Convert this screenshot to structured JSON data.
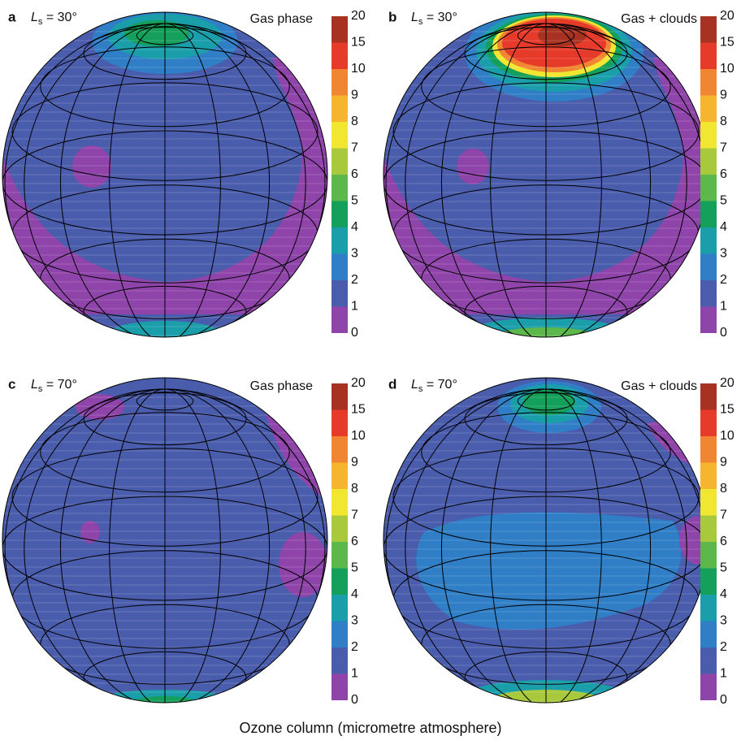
{
  "panels": [
    {
      "letter": "a",
      "ls_symbol": "L",
      "ls_subscript": "s",
      "ls_text": " = 30°",
      "phase": "Gas phase"
    },
    {
      "letter": "b",
      "ls_symbol": "L",
      "ls_subscript": "s",
      "ls_text": " = 30°",
      "phase": "Gas + clouds"
    },
    {
      "letter": "c",
      "ls_symbol": "L",
      "ls_subscript": "s",
      "ls_text": " = 70°",
      "phase": "Gas phase"
    },
    {
      "letter": "d",
      "ls_symbol": "L",
      "ls_subscript": "s",
      "ls_text": " = 70°",
      "phase": "Gas + clouds"
    }
  ],
  "colorbar": {
    "ticks": [
      0,
      1,
      2,
      3,
      4,
      5,
      6,
      7,
      8,
      9,
      10,
      15,
      20
    ],
    "colors": [
      "#8e44a8",
      "#4a5cac",
      "#2f7ec6",
      "#1a9eaa",
      "#14a05a",
      "#5cb84a",
      "#a9c93c",
      "#f2e730",
      "#f5b52e",
      "#f08632",
      "#e63a2a",
      "#a83222"
    ]
  },
  "caption": "Ozone column (micrometre atmosphere)"
}
